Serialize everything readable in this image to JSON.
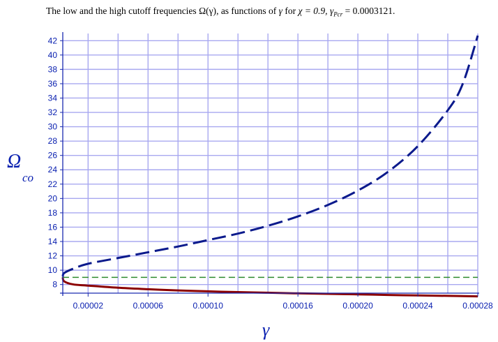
{
  "title": {
    "prefix": "The low and the high cutoff frequencies",
    "func": "Ω(γ)",
    "middle": ", as functions of",
    "var": "γ",
    "for": "for",
    "chi": "χ = 0.9,",
    "gamma_pcr_symbol": "γ",
    "gamma_pcr_sub": "Pcr",
    "gamma_pcr_value": "= 0.0003121."
  },
  "chart_data": {
    "type": "line",
    "xlabel": "γ",
    "ylabel_main": "Ω",
    "ylabel_sub": "co",
    "xlim": [
      3.1e-06,
      0.00028
    ],
    "ylim": [
      6.8,
      43
    ],
    "x_ticks": [
      {
        "value": 2e-05,
        "label": "0.00002"
      },
      {
        "value": 6e-05,
        "label": "0.00006"
      },
      {
        "value": 0.0001,
        "label": "0.00010"
      },
      {
        "value": 0.00016,
        "label": "0.00016"
      },
      {
        "value": 0.0002,
        "label": "0.00020"
      },
      {
        "value": 0.00024,
        "label": "0.00024"
      },
      {
        "value": 0.00028,
        "label": "0.00028"
      }
    ],
    "y_ticks": [
      8,
      10,
      12,
      14,
      16,
      18,
      20,
      22,
      24,
      26,
      28,
      30,
      32,
      34,
      36,
      38,
      40,
      42
    ],
    "grid": true,
    "series": [
      {
        "style": "long-dash",
        "color": "#0b1a8c",
        "x": [
          3.1e-06,
          4e-06,
          1e-05,
          2e-05,
          4e-05,
          6e-05,
          8e-05,
          0.0001,
          0.00012,
          0.00014,
          0.00016,
          0.00018,
          0.0002,
          0.00022,
          0.00024,
          0.00026,
          0.00027,
          0.00028
        ],
        "y": [
          9.1,
          9.6,
          10.2,
          10.9,
          11.7,
          12.5,
          13.3,
          14.2,
          15.1,
          16.2,
          17.5,
          19.1,
          21.1,
          23.7,
          27.3,
          32.3,
          36.0,
          42.7
        ]
      },
      {
        "style": "solid",
        "color": "#8b0000",
        "x": [
          3.1e-06,
          4e-06,
          1e-05,
          2e-05,
          4e-05,
          6e-05,
          8e-05,
          0.0001,
          0.00012,
          0.00014,
          0.00016,
          0.00018,
          0.0002,
          0.00022,
          0.00024,
          0.00026,
          0.00028
        ],
        "y": [
          9.05,
          8.45,
          8.02,
          7.85,
          7.55,
          7.35,
          7.18,
          7.05,
          6.94,
          6.86,
          6.77,
          6.7,
          6.63,
          6.55,
          6.48,
          6.42,
          6.35
        ]
      },
      {
        "style": "short-dash",
        "color": "#2e8b2e",
        "x": [
          3.1e-06,
          0.00028
        ],
        "y": [
          9.0,
          9.0
        ]
      }
    ]
  }
}
